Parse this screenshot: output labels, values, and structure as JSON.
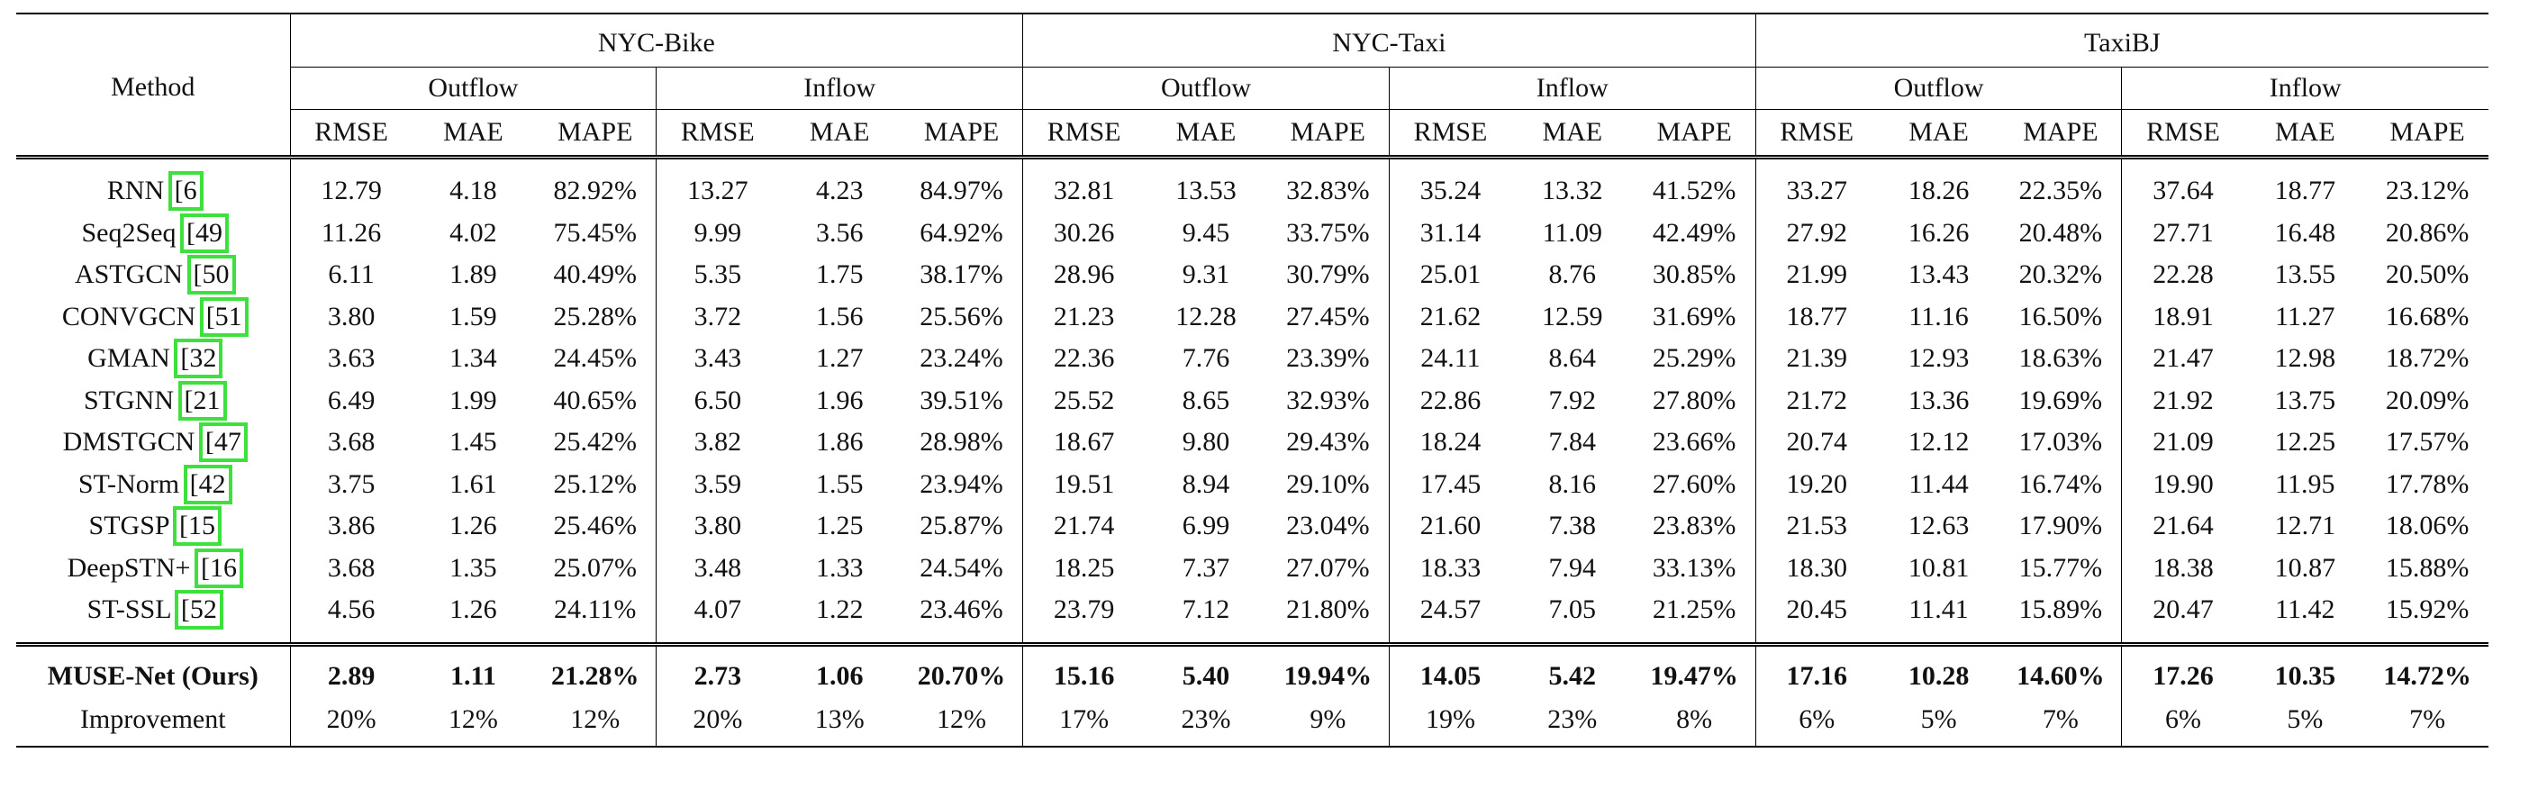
{
  "header": {
    "method": "Method",
    "datasets": [
      "NYC-Bike",
      "NYC-Taxi",
      "TaxiBJ"
    ],
    "flows": [
      "Outflow",
      "Inflow",
      "Outflow",
      "Inflow",
      "Outflow",
      "Inflow"
    ],
    "metrics": [
      "RMSE",
      "MAE",
      "MAPE",
      "RMSE",
      "MAE",
      "MAPE",
      "RMSE",
      "MAE",
      "MAPE",
      "RMSE",
      "MAE",
      "MAPE",
      "RMSE",
      "MAE",
      "MAPE",
      "RMSE",
      "MAE",
      "MAPE"
    ]
  },
  "rows": [
    {
      "name": "RNN",
      "cite": "[6",
      "values": [
        "12.79",
        "4.18",
        "82.92%",
        "13.27",
        "4.23",
        "84.97%",
        "32.81",
        "13.53",
        "32.83%",
        "35.24",
        "13.32",
        "41.52%",
        "33.27",
        "18.26",
        "22.35%",
        "37.64",
        "18.77",
        "23.12%"
      ]
    },
    {
      "name": "Seq2Seq",
      "cite": "[49",
      "values": [
        "11.26",
        "4.02",
        "75.45%",
        "9.99",
        "3.56",
        "64.92%",
        "30.26",
        "9.45",
        "33.75%",
        "31.14",
        "11.09",
        "42.49%",
        "27.92",
        "16.26",
        "20.48%",
        "27.71",
        "16.48",
        "20.86%"
      ]
    },
    {
      "name": "ASTGCN",
      "cite": "[50",
      "values": [
        "6.11",
        "1.89",
        "40.49%",
        "5.35",
        "1.75",
        "38.17%",
        "28.96",
        "9.31",
        "30.79%",
        "25.01",
        "8.76",
        "30.85%",
        "21.99",
        "13.43",
        "20.32%",
        "22.28",
        "13.55",
        "20.50%"
      ]
    },
    {
      "name": "CONVGCN",
      "cite": "[51",
      "values": [
        "3.80",
        "1.59",
        "25.28%",
        "3.72",
        "1.56",
        "25.56%",
        "21.23",
        "12.28",
        "27.45%",
        "21.62",
        "12.59",
        "31.69%",
        "18.77",
        "11.16",
        "16.50%",
        "18.91",
        "11.27",
        "16.68%"
      ]
    },
    {
      "name": "GMAN",
      "cite": "[32",
      "values": [
        "3.63",
        "1.34",
        "24.45%",
        "3.43",
        "1.27",
        "23.24%",
        "22.36",
        "7.76",
        "23.39%",
        "24.11",
        "8.64",
        "25.29%",
        "21.39",
        "12.93",
        "18.63%",
        "21.47",
        "12.98",
        "18.72%"
      ]
    },
    {
      "name": "STGNN",
      "cite": "[21",
      "values": [
        "6.49",
        "1.99",
        "40.65%",
        "6.50",
        "1.96",
        "39.51%",
        "25.52",
        "8.65",
        "32.93%",
        "22.86",
        "7.92",
        "27.80%",
        "21.72",
        "13.36",
        "19.69%",
        "21.92",
        "13.75",
        "20.09%"
      ]
    },
    {
      "name": "DMSTGCN",
      "cite": "[47",
      "values": [
        "3.68",
        "1.45",
        "25.42%",
        "3.82",
        "1.86",
        "28.98%",
        "18.67",
        "9.80",
        "29.43%",
        "18.24",
        "7.84",
        "23.66%",
        "20.74",
        "12.12",
        "17.03%",
        "21.09",
        "12.25",
        "17.57%"
      ]
    },
    {
      "name": "ST-Norm",
      "cite": "[42",
      "values": [
        "3.75",
        "1.61",
        "25.12%",
        "3.59",
        "1.55",
        "23.94%",
        "19.51",
        "8.94",
        "29.10%",
        "17.45",
        "8.16",
        "27.60%",
        "19.20",
        "11.44",
        "16.74%",
        "19.90",
        "11.95",
        "17.78%"
      ]
    },
    {
      "name": "STGSP",
      "cite": "[15",
      "values": [
        "3.86",
        "1.26",
        "25.46%",
        "3.80",
        "1.25",
        "25.87%",
        "21.74",
        "6.99",
        "23.04%",
        "21.60",
        "7.38",
        "23.83%",
        "21.53",
        "12.63",
        "17.90%",
        "21.64",
        "12.71",
        "18.06%"
      ]
    },
    {
      "name": "DeepSTN+",
      "cite": "[16",
      "values": [
        "3.68",
        "1.35",
        "25.07%",
        "3.48",
        "1.33",
        "24.54%",
        "18.25",
        "7.37",
        "27.07%",
        "18.33",
        "7.94",
        "33.13%",
        "18.30",
        "10.81",
        "15.77%",
        "18.38",
        "10.87",
        "15.88%"
      ]
    },
    {
      "name": "ST-SSL",
      "cite": "[52",
      "values": [
        "4.56",
        "1.26",
        "24.11%",
        "4.07",
        "1.22",
        "23.46%",
        "23.79",
        "7.12",
        "21.80%",
        "24.57",
        "7.05",
        "21.25%",
        "20.45",
        "11.41",
        "15.89%",
        "20.47",
        "11.42",
        "15.92%"
      ]
    }
  ],
  "ours": {
    "name": "MUSE-Net (Ours)",
    "values": [
      "2.89",
      "1.11",
      "21.28%",
      "2.73",
      "1.06",
      "20.70%",
      "15.16",
      "5.40",
      "19.94%",
      "14.05",
      "5.42",
      "19.47%",
      "17.16",
      "10.28",
      "14.60%",
      "17.26",
      "10.35",
      "14.72%"
    ]
  },
  "improvement": {
    "name": "Improvement",
    "values": [
      "20%",
      "12%",
      "12%",
      "20%",
      "13%",
      "12%",
      "17%",
      "23%",
      "9%",
      "19%",
      "23%",
      "8%",
      "6%",
      "5%",
      "7%",
      "6%",
      "5%",
      "7%"
    ]
  },
  "colors": {
    "citation_highlight": "#3ee03e",
    "rule": "#000000"
  }
}
